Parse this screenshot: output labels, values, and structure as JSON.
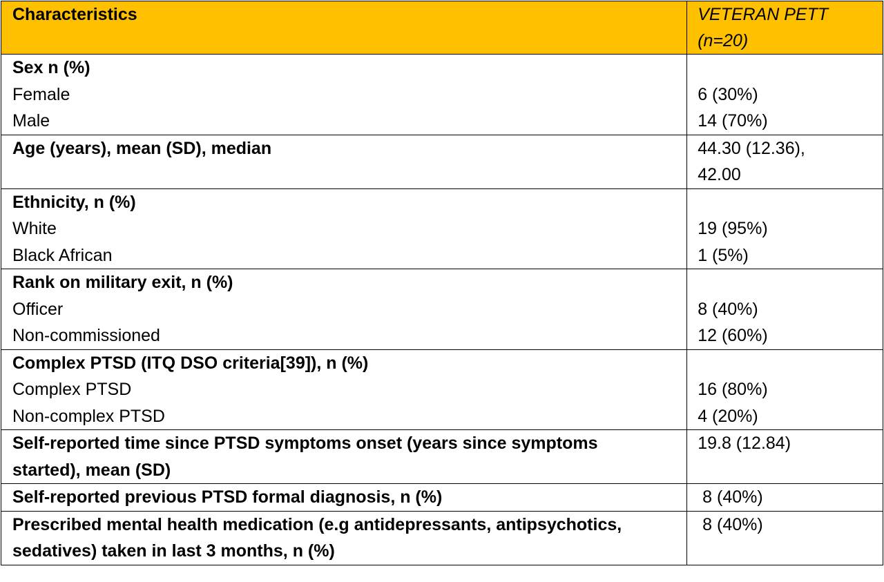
{
  "table": {
    "header": {
      "characteristics": "Characteristics",
      "group_line1": "VETERAN PETT",
      "group_line2": "(n=20)"
    },
    "sections": [
      {
        "title": "Sex n (%)",
        "rows": [
          {
            "label": "Female",
            "value": "6 (30%)"
          },
          {
            "label": "Male",
            "value": "14 (70%)"
          }
        ]
      },
      {
        "title": "Age (years), mean (SD), median",
        "value_line1": "44.30 (12.36),",
        "value_line2": "42.00"
      },
      {
        "title": "Ethnicity, n (%)",
        "rows": [
          {
            "label": "White",
            "value": "19 (95%)"
          },
          {
            "label": "Black African",
            "value": "1 (5%)"
          }
        ]
      },
      {
        "title": "Rank on military exit, n (%)",
        "rows": [
          {
            "label": "Officer",
            "value": "8 (40%)"
          },
          {
            "label": "Non-commissioned",
            "value": "12 (60%)"
          }
        ]
      },
      {
        "title": "Complex PTSD (ITQ DSO criteria[39]), n (%)",
        "rows": [
          {
            "label": "Complex PTSD",
            "value": "16 (80%)"
          },
          {
            "label": "Non-complex PTSD",
            "value": "4 (20%)"
          }
        ]
      },
      {
        "title_line1": "Self-reported time since PTSD symptoms onset (years since symptoms",
        "title_line2": "started), mean (SD)",
        "value": "19.8 (12.84)"
      },
      {
        "title": "Self-reported previous PTSD formal diagnosis, n (%)",
        "value": " 8 (40%)"
      },
      {
        "title_line1": "Prescribed mental health medication (e.g antidepressants, antipsychotics,",
        "title_line2": "sedatives) taken in last 3 months, n (%)",
        "value": " 8 (40%)"
      }
    ]
  }
}
